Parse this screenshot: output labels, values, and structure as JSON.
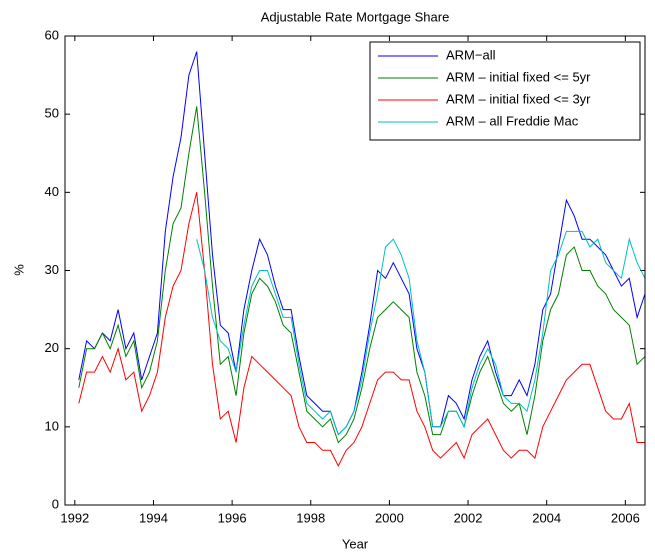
{
  "chart_data": {
    "type": "line",
    "title": "Adjustable Rate Mortgage Share",
    "xlabel": "Year",
    "ylabel": "%",
    "x": [
      1992.1,
      1992.3,
      1992.5,
      1992.7,
      1992.9,
      1993.1,
      1993.3,
      1993.5,
      1993.7,
      1993.9,
      1994.1,
      1994.3,
      1994.5,
      1994.7,
      1994.9,
      1995.1,
      1995.3,
      1995.5,
      1995.7,
      1995.9,
      1996.1,
      1996.3,
      1996.5,
      1996.7,
      1996.9,
      1997.1,
      1997.3,
      1997.5,
      1997.7,
      1997.9,
      1998.1,
      1998.3,
      1998.5,
      1998.7,
      1998.9,
      1999.1,
      1999.3,
      1999.5,
      1999.7,
      1999.9,
      2000.1,
      2000.3,
      2000.5,
      2000.7,
      2000.9,
      2001.1,
      2001.3,
      2001.5,
      2001.7,
      2001.9,
      2002.1,
      2002.3,
      2002.5,
      2002.7,
      2002.9,
      2003.1,
      2003.3,
      2003.5,
      2003.7,
      2003.9,
      2004.1,
      2004.3,
      2004.5,
      2004.7,
      2004.9,
      2005.1,
      2005.3,
      2005.5,
      2005.7,
      2005.9,
      2006.1,
      2006.3,
      2006.5
    ],
    "series": [
      {
        "name": "ARM−all",
        "color": "#0000ff",
        "values": [
          16,
          21,
          20,
          22,
          21,
          25,
          20,
          22,
          16,
          19,
          22,
          35,
          42,
          47,
          55,
          58,
          45,
          32,
          23,
          22,
          17,
          25,
          30,
          34,
          32,
          28,
          25,
          25,
          19,
          14,
          13,
          12,
          12,
          9,
          10,
          12,
          17,
          23,
          30,
          29,
          31,
          29,
          27,
          20,
          17,
          10,
          10,
          14,
          13,
          11,
          16,
          19,
          21,
          17,
          14,
          14,
          16,
          14,
          18,
          25,
          27,
          33,
          39,
          37,
          34,
          34,
          33,
          32,
          30,
          28,
          29,
          24,
          27
        ]
      },
      {
        "name": "ARM – initial fixed <= 5yr",
        "color": "#008000",
        "values": [
          15,
          20,
          20,
          22,
          20,
          23,
          19,
          21,
          15,
          17,
          21,
          30,
          36,
          38,
          45,
          51,
          40,
          28,
          18,
          19,
          14,
          22,
          27,
          29,
          28,
          26,
          23,
          22,
          17,
          12,
          11,
          10,
          11,
          8,
          9,
          11,
          15,
          20,
          24,
          25,
          26,
          25,
          24,
          17,
          14,
          9,
          9,
          12,
          12,
          10,
          14,
          17,
          19,
          16,
          13,
          12,
          13,
          9,
          14,
          21,
          25,
          27,
          32,
          33,
          30,
          30,
          28,
          27,
          25,
          24,
          23,
          18,
          19
        ]
      },
      {
        "name": "ARM – initial fixed <= 3yr",
        "color": "#ff0000",
        "values": [
          13,
          17,
          17,
          19,
          17,
          20,
          16,
          17,
          12,
          14,
          17,
          24,
          28,
          30,
          36,
          40,
          30,
          18,
          11,
          12,
          8,
          15,
          19,
          18,
          17,
          16,
          15,
          14,
          10,
          8,
          8,
          7,
          7,
          5,
          7,
          8,
          10,
          13,
          16,
          17,
          17,
          16,
          16,
          12,
          10,
          7,
          6,
          7,
          8,
          6,
          9,
          10,
          11,
          9,
          7,
          6,
          7,
          7,
          6,
          10,
          12,
          14,
          16,
          17,
          18,
          18,
          15,
          12,
          11,
          11,
          13,
          8,
          8
        ]
      },
      {
        "name": "ARM – all Freddie Mac",
        "color": "#00bfbf",
        "values": [
          null,
          null,
          null,
          null,
          null,
          null,
          null,
          null,
          null,
          null,
          null,
          null,
          null,
          null,
          null,
          34,
          30,
          24,
          21,
          20,
          17,
          23,
          28,
          30,
          30,
          27,
          24,
          24,
          18,
          13,
          12,
          11,
          12,
          9,
          10,
          12,
          16,
          22,
          27,
          33,
          34,
          32,
          29,
          21,
          17,
          10,
          10,
          12,
          12,
          10,
          15,
          18,
          20,
          18,
          14,
          13,
          13,
          12,
          16,
          22,
          30,
          32,
          35,
          35,
          35,
          33,
          34,
          31,
          30,
          29,
          34,
          31,
          29
        ]
      }
    ],
    "xlim": [
      1991.75,
      2006.5
    ],
    "ylim": [
      0,
      60
    ],
    "xticks": [
      1992,
      1994,
      1996,
      1998,
      2000,
      2002,
      2004,
      2006
    ],
    "yticks": [
      0,
      10,
      20,
      30,
      40,
      50,
      60
    ],
    "legend": "upper right",
    "grid": false
  }
}
